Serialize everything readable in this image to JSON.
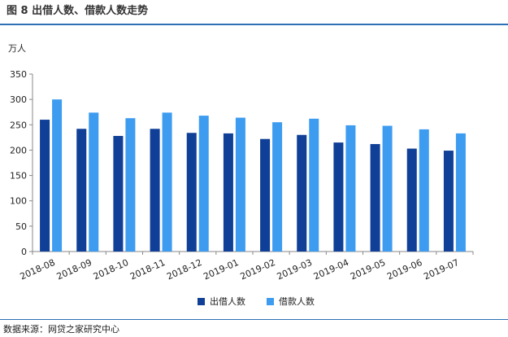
{
  "header": {
    "title": "图 8   出借人数、借款人数走势"
  },
  "footer": {
    "source": "数据来源：网贷之家研究中心"
  },
  "colors": {
    "accent_rule": "#2f6fb5",
    "series_lender": "#0f3f96",
    "series_borrower": "#3d9cf0"
  },
  "chart_data": {
    "type": "bar",
    "unit_label": "万人",
    "categories": [
      "2018-08",
      "2018-09",
      "2018-10",
      "2018-11",
      "2018-12",
      "2019-01",
      "2019-02",
      "2019-03",
      "2019-04",
      "2019-05",
      "2019-06",
      "2019-07"
    ],
    "series": [
      {
        "name": "出借人数",
        "values": [
          260,
          242,
          228,
          242,
          234,
          233,
          222,
          230,
          215,
          212,
          203,
          199
        ]
      },
      {
        "name": "借款人数",
        "values": [
          300,
          274,
          263,
          274,
          268,
          264,
          255,
          262,
          249,
          248,
          241,
          233
        ]
      }
    ],
    "ylim": [
      0,
      350
    ],
    "yticks": [
      0,
      50,
      100,
      150,
      200,
      250,
      300,
      350
    ],
    "grid": false,
    "legend_position": "bottom-center"
  }
}
